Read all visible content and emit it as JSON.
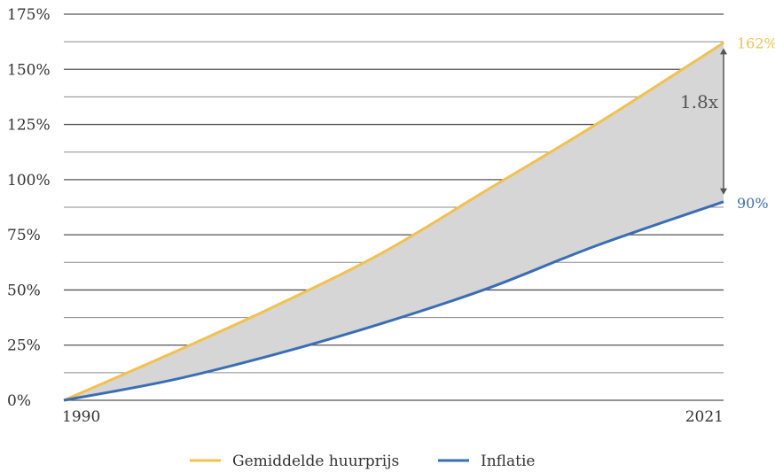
{
  "chart_data": {
    "type": "area",
    "x_range": [
      1990,
      2021
    ],
    "x_tick_labels": [
      "1990",
      "2021"
    ],
    "ylim": [
      0,
      175
    ],
    "y_ticks": [
      0,
      25,
      50,
      75,
      100,
      125,
      150,
      175
    ],
    "y_tick_labels": [
      "0%",
      "25%",
      "50%",
      "75%",
      "100%",
      "125%",
      "150%",
      "175%"
    ],
    "grid": true,
    "legend_placement": "bottom",
    "series": [
      {
        "name": "Gemiddelde huurprijs",
        "color": "#f2c14e",
        "x": [
          1990,
          1995,
          2000,
          2005,
          2010,
          2015,
          2021
        ],
        "values": [
          0,
          21,
          43,
          67,
          96,
          125,
          162
        ],
        "end_label": "162%"
      },
      {
        "name": "Inflatie",
        "color": "#3a6db5",
        "x": [
          1990,
          1995,
          2000,
          2005,
          2010,
          2015,
          2021
        ],
        "values": [
          0,
          9,
          21,
          35,
          51,
          70,
          90
        ],
        "end_label": "90%"
      }
    ],
    "fill_between_color": "#d6d6d6",
    "annotation": {
      "text": "1.8x",
      "x": 2021,
      "from": 90,
      "to": 162
    }
  }
}
